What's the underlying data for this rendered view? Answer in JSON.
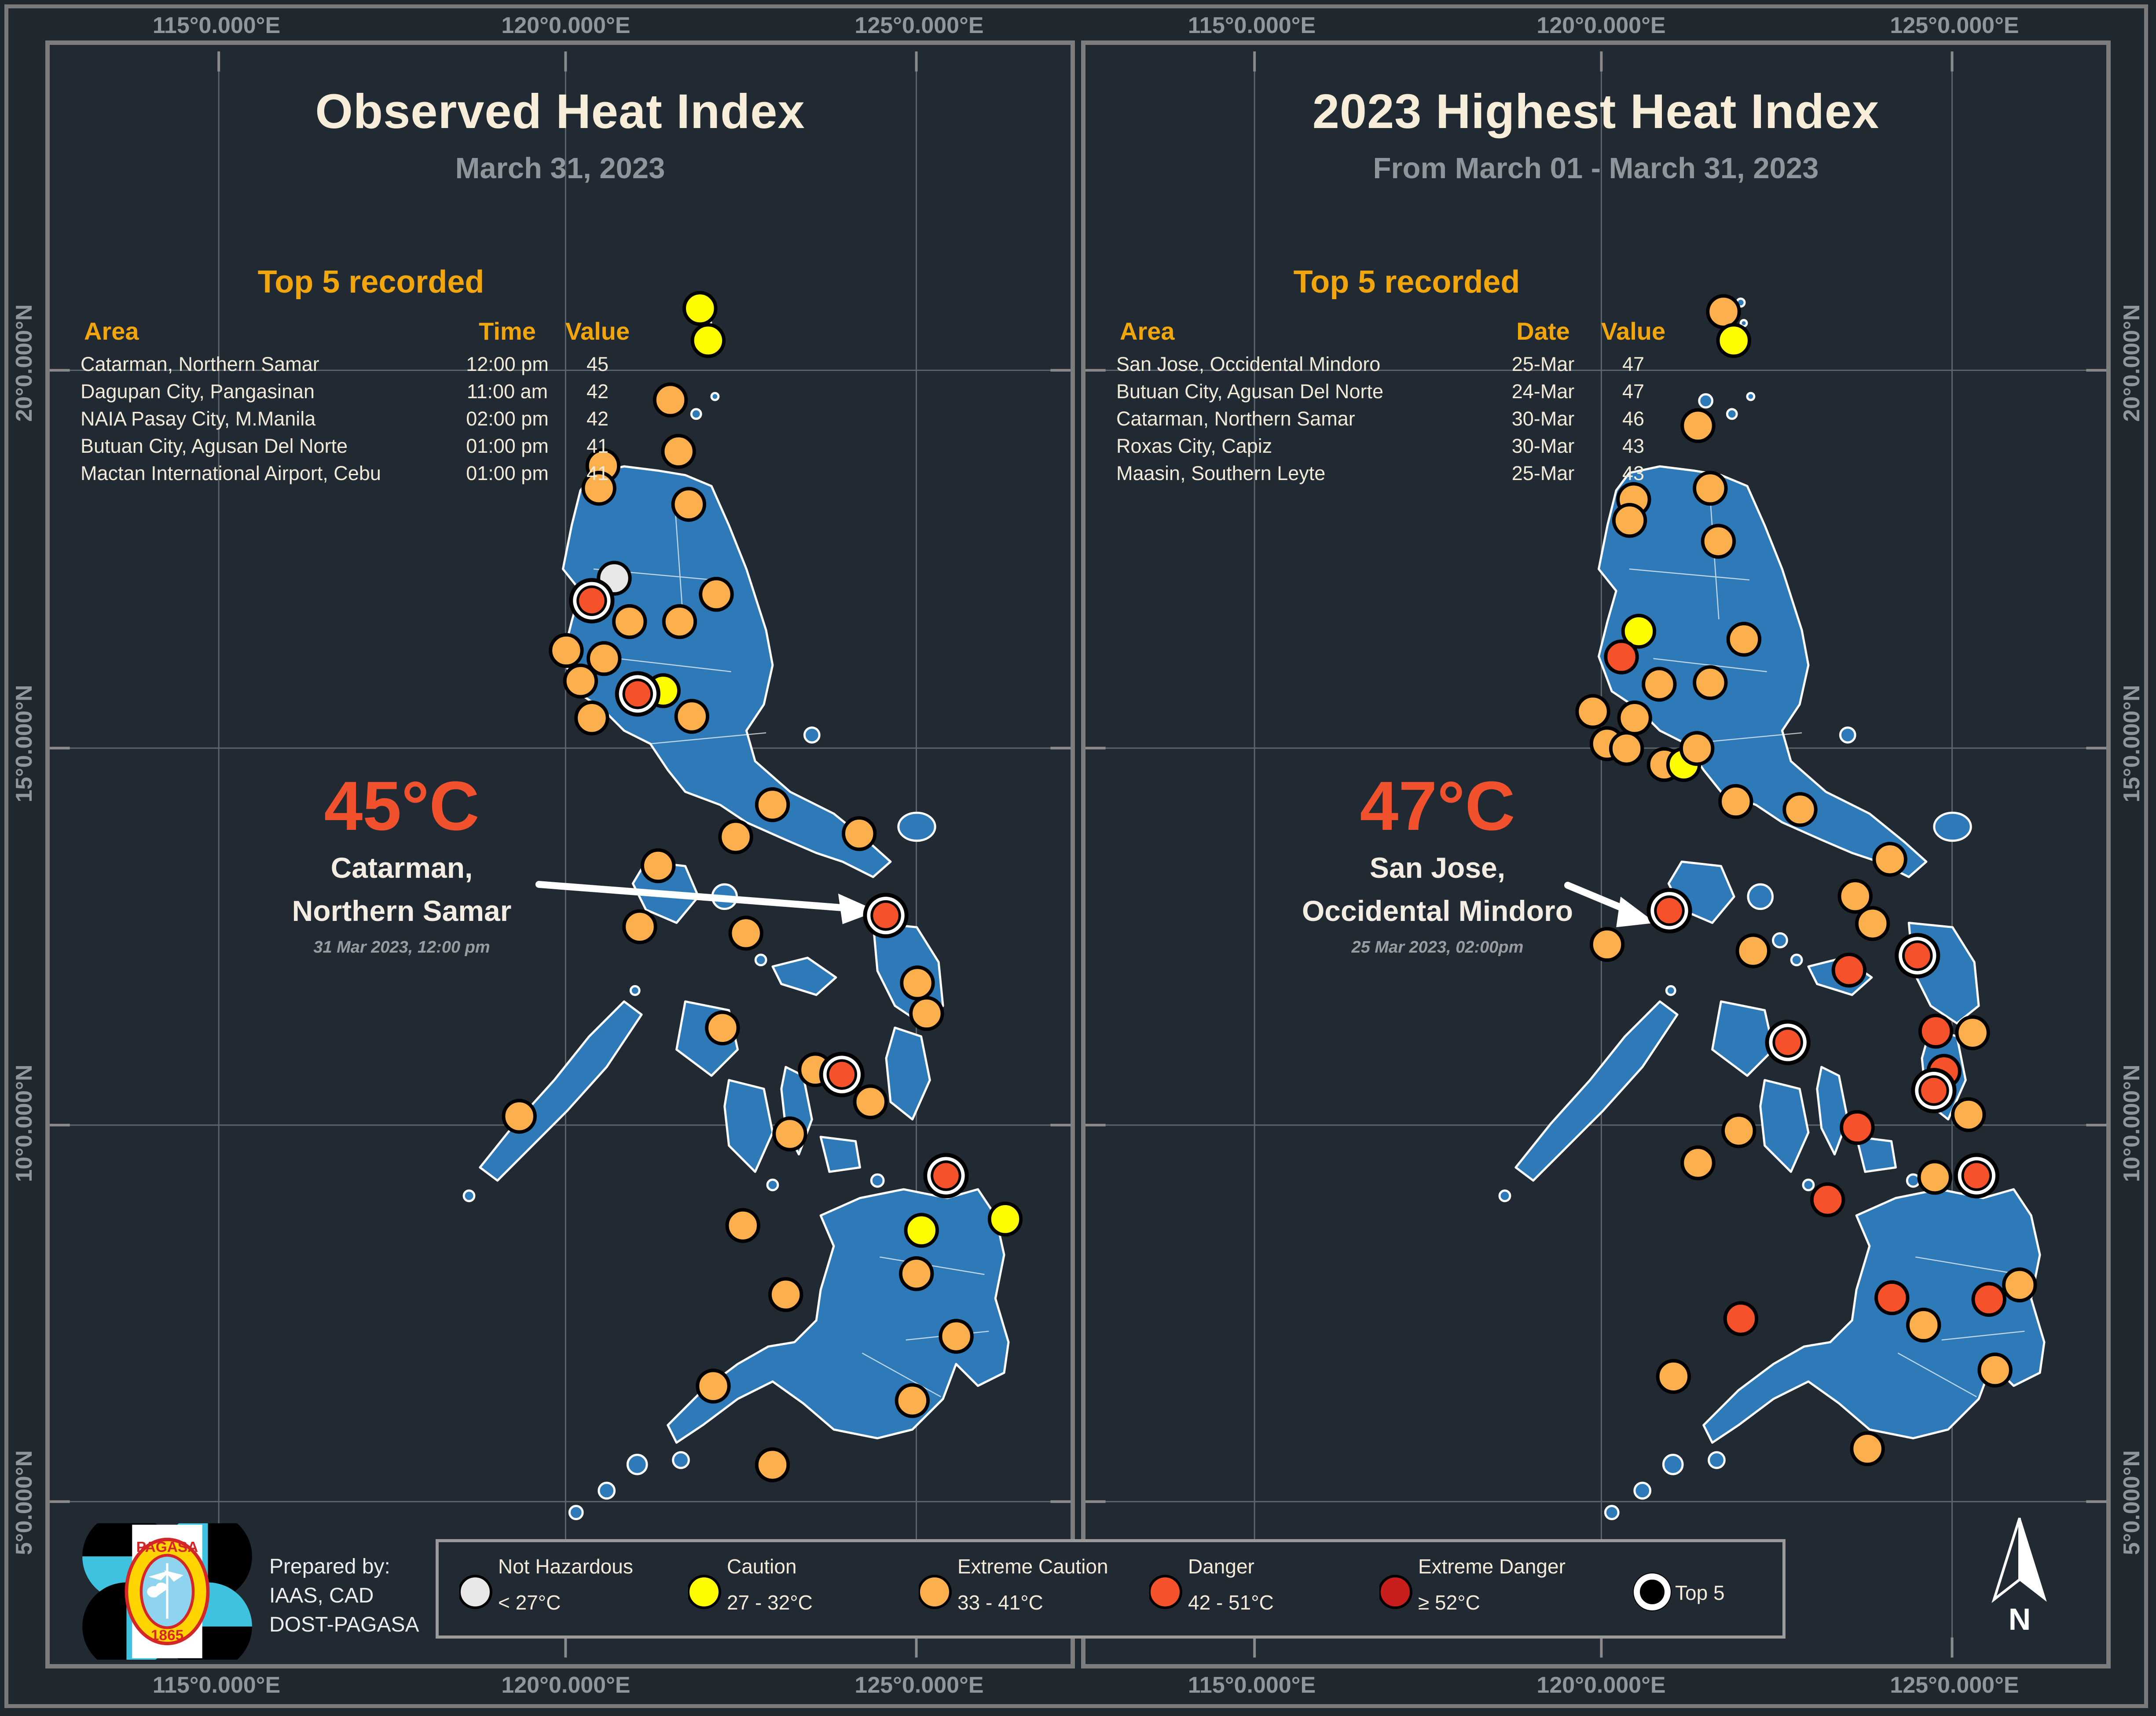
{
  "axis": {
    "lon": [
      "115°0.000°E",
      "120°0.000°E",
      "125°0.000°E"
    ],
    "lat": [
      "20°0.000°N",
      "15°0.000°N",
      "10°0.000°N",
      "5°0.000°N"
    ]
  },
  "panels": [
    {
      "title": "Observed Heat Index",
      "subtitle": "March 31, 2023",
      "top5": {
        "heading": "Top 5 recorded",
        "columns": [
          "Area",
          "Time",
          "Value"
        ],
        "rows": [
          {
            "area": "Catarman, Northern Samar",
            "time": "12:00 pm",
            "value": "45"
          },
          {
            "area": "Dagupan City, Pangasinan",
            "time": "11:00 am",
            "value": "42"
          },
          {
            "area": "NAIA Pasay City, M.Manila",
            "time": "02:00 pm",
            "value": "42"
          },
          {
            "area": "Butuan City, Agusan Del Norte",
            "time": "01:00 pm",
            "value": "41"
          },
          {
            "area": "Mactan International Airport, Cebu",
            "time": "01:00 pm",
            "value": "41"
          }
        ]
      },
      "annotation": {
        "temp": "45°C",
        "line1": "Catarman,",
        "line2": "Northern Samar",
        "datetime": "31 Mar 2023, 12:00 pm"
      },
      "dots": [
        [
          0.637,
          0.16,
          "y"
        ],
        [
          0.645,
          0.18,
          "y"
        ],
        [
          0.608,
          0.217,
          "o"
        ],
        [
          0.616,
          0.249,
          "o"
        ],
        [
          0.542,
          0.258,
          "o"
        ],
        [
          0.538,
          0.272,
          "o"
        ],
        [
          0.626,
          0.282,
          "o"
        ],
        [
          0.553,
          0.328,
          "w"
        ],
        [
          0.531,
          0.342,
          "rr"
        ],
        [
          0.653,
          0.338,
          "o"
        ],
        [
          0.568,
          0.355,
          "o"
        ],
        [
          0.617,
          0.355,
          "o"
        ],
        [
          0.506,
          0.373,
          "o"
        ],
        [
          0.543,
          0.378,
          "o"
        ],
        [
          0.52,
          0.392,
          "o"
        ],
        [
          0.531,
          0.415,
          "o"
        ],
        [
          0.576,
          0.4,
          "rr"
        ],
        [
          0.601,
          0.398,
          "y"
        ],
        [
          0.629,
          0.414,
          "o"
        ],
        [
          0.708,
          0.469,
          "o"
        ],
        [
          0.793,
          0.487,
          "o"
        ],
        [
          0.672,
          0.489,
          "o"
        ],
        [
          0.596,
          0.507,
          "o"
        ],
        [
          0.819,
          0.538,
          "rr"
        ],
        [
          0.578,
          0.545,
          "o"
        ],
        [
          0.682,
          0.549,
          "o"
        ],
        [
          0.85,
          0.58,
          "o"
        ],
        [
          0.859,
          0.599,
          "o"
        ],
        [
          0.659,
          0.608,
          "o"
        ],
        [
          0.75,
          0.634,
          "o"
        ],
        [
          0.776,
          0.637,
          "ro"
        ],
        [
          0.804,
          0.654,
          "o"
        ],
        [
          0.46,
          0.663,
          "o"
        ],
        [
          0.725,
          0.674,
          "o"
        ],
        [
          0.878,
          0.7,
          "ro"
        ],
        [
          0.854,
          0.734,
          "y"
        ],
        [
          0.936,
          0.727,
          "y"
        ],
        [
          0.721,
          0.774,
          "o"
        ],
        [
          0.849,
          0.761,
          "o"
        ],
        [
          0.679,
          0.731,
          "o"
        ],
        [
          0.888,
          0.8,
          "o"
        ],
        [
          0.65,
          0.831,
          "o"
        ],
        [
          0.845,
          0.84,
          "o"
        ],
        [
          0.708,
          0.88,
          "o"
        ]
      ]
    },
    {
      "title": "2023 Highest Heat Index",
      "subtitle": "From March 01 - March 31, 2023",
      "top5": {
        "heading": "Top 5 recorded",
        "columns": [
          "Area",
          "Date",
          "Value"
        ],
        "rows": [
          {
            "area": "San Jose, Occidental Mindoro",
            "time": "25-Mar",
            "value": "47"
          },
          {
            "area": "Butuan City, Agusan Del Norte",
            "time": "24-Mar",
            "value": "47"
          },
          {
            "area": "Catarman, Northern Samar",
            "time": "30-Mar",
            "value": "46"
          },
          {
            "area": "Roxas City, Capiz",
            "time": "30-Mar",
            "value": "43"
          },
          {
            "area": "Maasin, Southern Leyte",
            "time": "25-Mar",
            "value": "43"
          }
        ]
      },
      "annotation": {
        "temp": "47°C",
        "line1": "San Jose,",
        "line2": "Occidental Mindoro",
        "datetime": "25 Mar 2023, 02:00pm"
      },
      "dots": [
        [
          0.625,
          0.162,
          "o"
        ],
        [
          0.635,
          0.18,
          "y"
        ],
        [
          0.6,
          0.233,
          "o"
        ],
        [
          0.612,
          0.272,
          "o"
        ],
        [
          0.537,
          0.279,
          "o"
        ],
        [
          0.533,
          0.292,
          "o"
        ],
        [
          0.62,
          0.305,
          "o"
        ],
        [
          0.542,
          0.361,
          "y"
        ],
        [
          0.525,
          0.377,
          "r"
        ],
        [
          0.562,
          0.394,
          "o"
        ],
        [
          0.612,
          0.393,
          "o"
        ],
        [
          0.645,
          0.366,
          "o"
        ],
        [
          0.497,
          0.411,
          "o"
        ],
        [
          0.538,
          0.415,
          "o"
        ],
        [
          0.511,
          0.431,
          "o"
        ],
        [
          0.53,
          0.434,
          "o"
        ],
        [
          0.567,
          0.444,
          "o"
        ],
        [
          0.586,
          0.444,
          "y"
        ],
        [
          0.599,
          0.434,
          "o"
        ],
        [
          0.637,
          0.467,
          "o"
        ],
        [
          0.7,
          0.472,
          "o"
        ],
        [
          0.788,
          0.503,
          "o"
        ],
        [
          0.754,
          0.526,
          "o"
        ],
        [
          0.771,
          0.543,
          "o"
        ],
        [
          0.815,
          0.563,
          "rr"
        ],
        [
          0.748,
          0.572,
          "r"
        ],
        [
          0.654,
          0.56,
          "o"
        ],
        [
          0.688,
          0.617,
          "rr"
        ],
        [
          0.833,
          0.61,
          "r"
        ],
        [
          0.869,
          0.611,
          "o"
        ],
        [
          0.841,
          0.635,
          "r"
        ],
        [
          0.511,
          0.556,
          "o"
        ],
        [
          0.572,
          0.535,
          "rr"
        ],
        [
          0.831,
          0.647,
          "rr"
        ],
        [
          0.865,
          0.662,
          "o"
        ],
        [
          0.756,
          0.67,
          "r"
        ],
        [
          0.727,
          0.715,
          "r"
        ],
        [
          0.64,
          0.672,
          "o"
        ],
        [
          0.6,
          0.692,
          "o"
        ],
        [
          0.873,
          0.7,
          "rr"
        ],
        [
          0.832,
          0.701,
          "o"
        ],
        [
          0.79,
          0.776,
          "r"
        ],
        [
          0.885,
          0.777,
          "r"
        ],
        [
          0.642,
          0.789,
          "r"
        ],
        [
          0.821,
          0.793,
          "o"
        ],
        [
          0.915,
          0.768,
          "o"
        ],
        [
          0.891,
          0.821,
          "o"
        ],
        [
          0.766,
          0.87,
          "o"
        ],
        [
          0.576,
          0.825,
          "o"
        ]
      ]
    }
  ],
  "legend": {
    "items": [
      {
        "label": "Not Hazardous",
        "range": "< 27°C",
        "color": "#e8e8e8"
      },
      {
        "label": "Caution",
        "range": "27 - 32°C",
        "color": "#fdfd00"
      },
      {
        "label": "Extreme Caution",
        "range": "33 - 41°C",
        "color": "#fbaf4d"
      },
      {
        "label": "Danger",
        "range": "42 - 51°C",
        "color": "#f5512b"
      },
      {
        "label": "Extreme Danger",
        "range": "≥ 52°C",
        "color": "#c81e1e"
      }
    ],
    "top5_label": "Top 5"
  },
  "credits": {
    "line1": "Prepared by:",
    "line2": "IAAS, CAD",
    "line3": "DOST-PAGASA"
  },
  "logo": {
    "seal_top": "PAGASA",
    "seal_bottom": "1865"
  },
  "compass": {
    "label": "N"
  },
  "map_colors": {
    "land": "#2e7ab8",
    "coastline": "#ffffff",
    "sea": "#212a32",
    "grid": "#5c646c"
  }
}
